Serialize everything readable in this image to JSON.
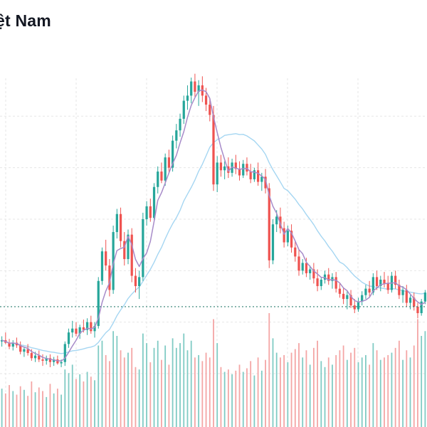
{
  "chart_data": {
    "type": "candlestick",
    "title": "ệt Nam",
    "reference_price": 15.2,
    "ylim": [
      10.0,
      33.5
    ],
    "colors": {
      "up": "#26a69a",
      "down": "#ef5350",
      "ma_short": "#a78bc9",
      "ma_long": "#a5d6f2",
      "reference_line": "#2e7d6f",
      "volume_up": "#80cbc4",
      "volume_down": "#f4a6a5",
      "grid": "#e6e6e6"
    },
    "ma_short_period": 5,
    "ma_long_period": 20,
    "candles": [
      [
        12.5,
        12.9,
        12.1,
        12.6,
        32
      ],
      [
        12.6,
        13.2,
        12.3,
        12.4,
        28
      ],
      [
        12.4,
        12.7,
        11.9,
        12.1,
        35
      ],
      [
        12.1,
        12.6,
        11.8,
        12.4,
        30
      ],
      [
        12.4,
        12.8,
        12.0,
        12.2,
        27
      ],
      [
        12.2,
        12.5,
        11.5,
        11.7,
        34
      ],
      [
        11.7,
        12.1,
        11.3,
        11.9,
        31
      ],
      [
        11.9,
        12.3,
        11.4,
        11.6,
        26
      ],
      [
        11.6,
        11.9,
        11.0,
        11.2,
        38
      ],
      [
        11.2,
        11.7,
        10.9,
        11.4,
        29
      ],
      [
        11.4,
        11.8,
        10.9,
        11.1,
        33
      ],
      [
        11.1,
        11.5,
        10.6,
        11.0,
        30
      ],
      [
        11.0,
        11.4,
        10.7,
        11.2,
        25
      ],
      [
        11.2,
        11.5,
        10.5,
        10.9,
        36
      ],
      [
        10.9,
        11.3,
        10.6,
        11.1,
        28
      ],
      [
        11.1,
        11.4,
        10.7,
        10.8,
        32
      ],
      [
        10.8,
        11.1,
        10.5,
        10.9,
        27
      ],
      [
        10.9,
        12.5,
        10.6,
        12.3,
        48
      ],
      [
        12.3,
        13.5,
        12.0,
        13.2,
        45
      ],
      [
        13.2,
        14.1,
        12.8,
        13.5,
        52
      ],
      [
        13.5,
        14.0,
        12.9,
        13.1,
        40
      ],
      [
        13.1,
        13.8,
        12.7,
        13.6,
        44
      ],
      [
        13.6,
        14.2,
        13.2,
        13.4,
        38
      ],
      [
        13.4,
        14.3,
        13.0,
        14.0,
        46
      ],
      [
        14.0,
        14.5,
        13.1,
        13.3,
        42
      ],
      [
        13.3,
        14.0,
        12.8,
        13.7,
        39
      ],
      [
        13.7,
        17.5,
        13.5,
        17.2,
        68
      ],
      [
        17.2,
        19.8,
        16.9,
        19.5,
        72
      ],
      [
        19.5,
        20.4,
        18.0,
        18.4,
        60
      ],
      [
        18.4,
        18.9,
        16.0,
        16.5,
        55
      ],
      [
        16.5,
        21.5,
        16.2,
        21.0,
        80
      ],
      [
        21.0,
        22.8,
        20.5,
        22.4,
        76
      ],
      [
        22.4,
        22.9,
        19.8,
        20.3,
        64
      ],
      [
        20.3,
        21.0,
        18.4,
        18.9,
        58
      ],
      [
        18.9,
        21.2,
        18.5,
        20.8,
        62
      ],
      [
        20.8,
        21.3,
        17.1,
        17.6,
        66
      ],
      [
        17.6,
        18.2,
        16.3,
        16.8,
        50
      ],
      [
        16.8,
        18.0,
        15.8,
        17.5,
        48
      ],
      [
        17.5,
        22.5,
        17.2,
        22.0,
        78
      ],
      [
        22.0,
        23.4,
        21.5,
        23.0,
        70
      ],
      [
        23.0,
        23.6,
        21.8,
        22.1,
        54
      ],
      [
        22.1,
        24.8,
        21.9,
        24.5,
        66
      ],
      [
        24.5,
        26.1,
        24.0,
        25.7,
        72
      ],
      [
        25.7,
        26.4,
        24.8,
        25.0,
        56
      ],
      [
        25.0,
        27.1,
        24.6,
        26.8,
        68
      ],
      [
        26.8,
        27.4,
        25.6,
        26.0,
        52
      ],
      [
        26.0,
        28.5,
        25.7,
        28.1,
        74
      ],
      [
        28.1,
        29.4,
        27.5,
        28.9,
        66
      ],
      [
        28.9,
        30.2,
        28.4,
        29.8,
        70
      ],
      [
        29.8,
        31.6,
        29.4,
        31.2,
        78
      ],
      [
        31.2,
        32.4,
        30.5,
        31.6,
        64
      ],
      [
        31.6,
        33.0,
        31.0,
        32.7,
        72
      ],
      [
        32.7,
        33.3,
        31.5,
        31.9,
        58
      ],
      [
        31.9,
        32.8,
        30.8,
        32.4,
        60
      ],
      [
        32.4,
        33.1,
        31.1,
        31.6,
        55
      ],
      [
        31.6,
        32.2,
        30.4,
        30.9,
        62
      ],
      [
        30.9,
        31.4,
        29.6,
        30.1,
        58
      ],
      [
        30.1,
        30.8,
        24.2,
        24.7,
        90
      ],
      [
        24.7,
        26.9,
        24.1,
        26.4,
        70
      ],
      [
        26.4,
        27.0,
        25.3,
        25.8,
        50
      ],
      [
        25.8,
        26.5,
        25.1,
        26.1,
        46
      ],
      [
        26.1,
        26.8,
        25.2,
        25.6,
        48
      ],
      [
        25.6,
        26.7,
        25.3,
        26.4,
        44
      ],
      [
        26.4,
        27.0,
        25.5,
        25.9,
        47
      ],
      [
        25.9,
        26.5,
        25.0,
        25.4,
        52
      ],
      [
        25.4,
        26.6,
        25.2,
        26.3,
        46
      ],
      [
        26.3,
        26.8,
        25.4,
        25.7,
        49
      ],
      [
        25.7,
        26.3,
        24.8,
        25.1,
        55
      ],
      [
        25.1,
        26.0,
        24.9,
        25.8,
        43
      ],
      [
        25.8,
        26.4,
        24.6,
        24.9,
        58
      ],
      [
        24.9,
        25.6,
        24.2,
        25.3,
        47
      ],
      [
        25.3,
        25.9,
        24.0,
        24.4,
        56
      ],
      [
        24.4,
        24.8,
        18.2,
        18.8,
        95
      ],
      [
        18.8,
        22.0,
        18.5,
        21.6,
        74
      ],
      [
        21.6,
        22.7,
        21.0,
        22.2,
        62
      ],
      [
        22.2,
        22.9,
        20.9,
        21.3,
        58
      ],
      [
        21.3,
        21.8,
        19.8,
        20.2,
        60
      ],
      [
        20.2,
        21.5,
        19.9,
        21.1,
        54
      ],
      [
        21.1,
        21.6,
        19.4,
        19.8,
        62
      ],
      [
        19.8,
        20.3,
        18.7,
        19.1,
        65
      ],
      [
        19.1,
        19.6,
        17.6,
        18.0,
        70
      ],
      [
        18.0,
        18.9,
        17.7,
        18.6,
        58
      ],
      [
        18.6,
        19.0,
        17.5,
        17.8,
        64
      ],
      [
        17.8,
        18.4,
        17.3,
        18.1,
        52
      ],
      [
        18.1,
        18.6,
        17.0,
        17.4,
        66
      ],
      [
        17.4,
        18.1,
        16.4,
        16.8,
        72
      ],
      [
        16.8,
        17.5,
        16.5,
        17.3,
        55
      ],
      [
        17.3,
        18.0,
        17.0,
        17.7,
        50
      ],
      [
        17.7,
        18.2,
        16.9,
        17.2,
        58
      ],
      [
        17.2,
        17.8,
        16.6,
        17.5,
        52
      ],
      [
        17.5,
        17.9,
        16.3,
        16.6,
        60
      ],
      [
        16.6,
        17.0,
        15.9,
        16.2,
        64
      ],
      [
        16.2,
        16.7,
        15.4,
        15.8,
        68
      ],
      [
        15.8,
        16.4,
        15.0,
        16.1,
        56
      ],
      [
        16.1,
        16.5,
        15.1,
        15.3,
        62
      ],
      [
        15.3,
        15.8,
        14.7,
        15.0,
        66
      ],
      [
        15.0,
        15.9,
        14.8,
        15.6,
        54
      ],
      [
        15.6,
        16.4,
        15.3,
        16.1,
        58
      ],
      [
        16.1,
        16.9,
        15.8,
        16.6,
        60
      ],
      [
        16.6,
        17.2,
        16.0,
        16.3,
        52
      ],
      [
        16.3,
        17.8,
        16.1,
        17.5,
        70
      ],
      [
        17.5,
        18.0,
        16.5,
        16.8,
        64
      ],
      [
        16.8,
        17.6,
        16.4,
        17.3,
        56
      ],
      [
        17.3,
        17.9,
        16.7,
        17.0,
        58
      ],
      [
        17.0,
        17.6,
        16.2,
        16.5,
        60
      ],
      [
        16.5,
        17.9,
        16.3,
        17.6,
        62
      ],
      [
        17.6,
        18.0,
        16.6,
        16.9,
        66
      ],
      [
        16.9,
        17.3,
        15.8,
        16.1,
        72
      ],
      [
        16.1,
        16.8,
        15.5,
        16.5,
        56
      ],
      [
        16.5,
        16.9,
        15.2,
        15.5,
        64
      ],
      [
        15.5,
        16.1,
        15.0,
        15.9,
        58
      ],
      [
        15.9,
        16.3,
        14.9,
        15.2,
        68
      ],
      [
        15.2,
        15.5,
        14.3,
        14.7,
        90
      ],
      [
        14.7,
        15.8,
        14.5,
        15.6,
        76
      ],
      [
        15.6,
        16.5,
        15.4,
        16.3,
        80
      ]
    ]
  }
}
